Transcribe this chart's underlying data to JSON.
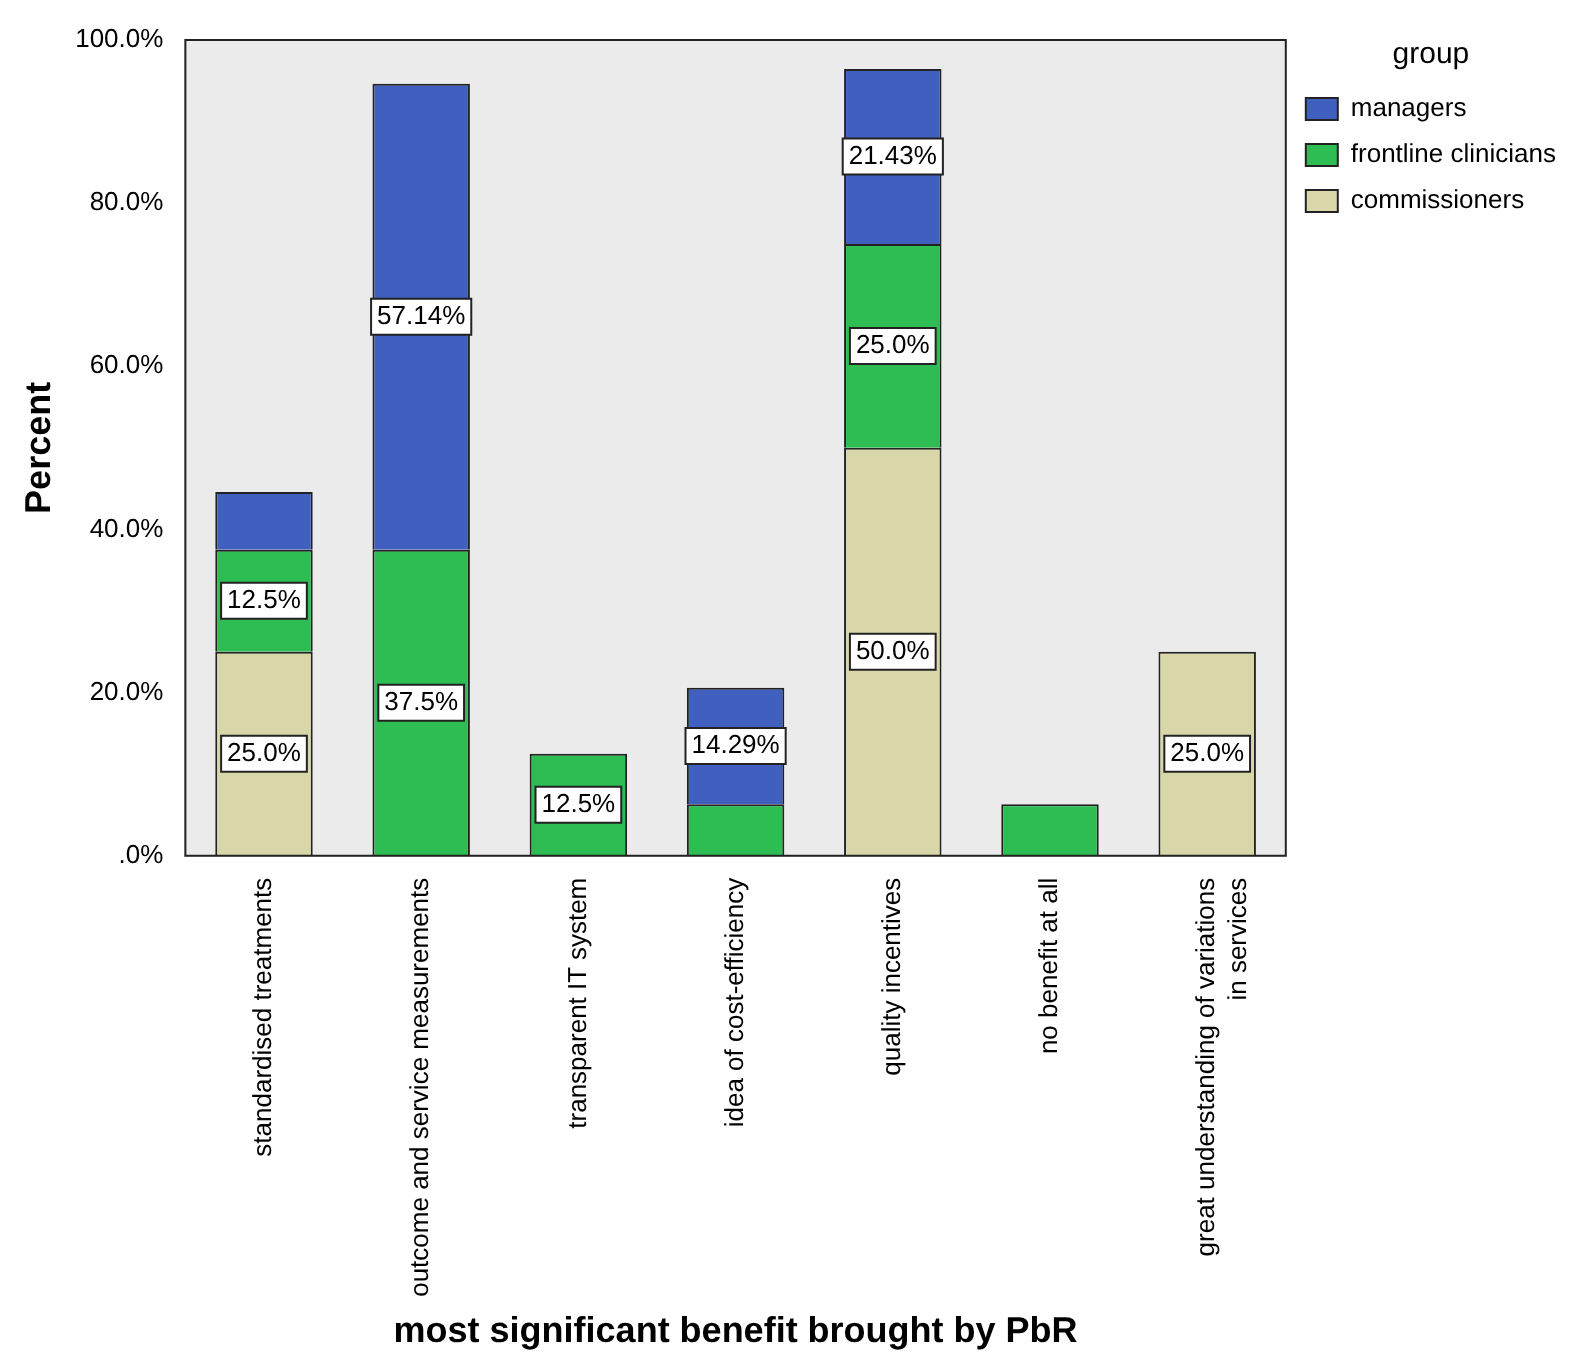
{
  "chart_data": {
    "type": "bar",
    "stacked": true,
    "xlabel": "most significant benefit brought by PbR",
    "ylabel": "Percent",
    "legend_title": "group",
    "categories": [
      "standardised treatments",
      "outcome and service measurements",
      "transparent IT system",
      "idea of cost-efficiency",
      "quality incentives",
      "no benefit at all",
      "great understanding of variations in services"
    ],
    "series": [
      {
        "name": "commissioners",
        "color": "#d9d7a9",
        "values": [
          25.0,
          null,
          null,
          null,
          50.0,
          null,
          25.0
        ],
        "value_labels": [
          "25.0%",
          null,
          null,
          null,
          "50.0%",
          null,
          "25.0%"
        ]
      },
      {
        "name": "frontline clinicians",
        "color": "#2ebd52",
        "values": [
          12.5,
          37.5,
          12.5,
          6.3,
          25.0,
          6.3,
          null
        ],
        "value_labels": [
          "12.5%",
          "37.5%",
          "12.5%",
          null,
          "25.0%",
          null,
          null
        ]
      },
      {
        "name": "managers",
        "color": "#3f60bf",
        "values": [
          7.1,
          57.14,
          null,
          14.29,
          21.43,
          null,
          null
        ],
        "value_labels": [
          null,
          "57.14%",
          null,
          "14.29%",
          "21.43%",
          null,
          null
        ]
      }
    ],
    "ylim": [
      0,
      100
    ],
    "yticks": [
      {
        "value": 0,
        "label": ".0%"
      },
      {
        "value": 20,
        "label": "20.0%"
      },
      {
        "value": 40,
        "label": "40.0%"
      },
      {
        "value": 60,
        "label": "60.0%"
      },
      {
        "value": 80,
        "label": "80.0%"
      },
      {
        "value": 100,
        "label": "100.0%"
      }
    ],
    "grid": false,
    "legend": "top right"
  }
}
